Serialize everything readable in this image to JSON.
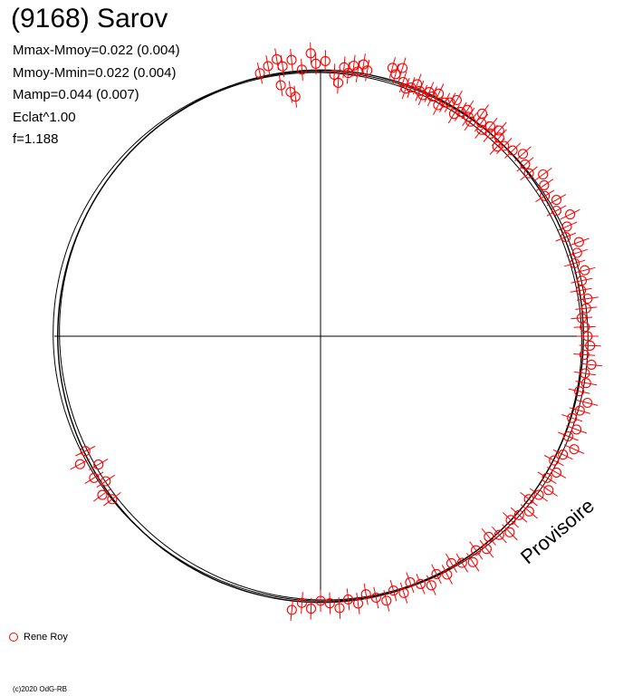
{
  "header": {
    "title": "(9168) Sarov",
    "stats": [
      "Mmax-Mmoy=0.022 (0.004)",
      "Mmoy-Mmin=0.022 (0.004)",
      "Mamp=0.044 (0.007)",
      "Eclat^1.00",
      "f=1.188"
    ]
  },
  "legend": {
    "label": "Rene Roy",
    "color": "#ff0000"
  },
  "watermark": "Provisoire",
  "copyright": "(c)2020 OdG-RB",
  "chart_data": {
    "type": "scatter",
    "title": "(9168) Sarov",
    "xlabel": "",
    "ylabel": "",
    "grid": false,
    "legend_position": "bottom-left",
    "series": [
      {
        "name": "Rene Roy",
        "color": "#ff0000",
        "note_unit": "normalized brightness radius vs rotational phase (deg)",
        "points": [
          [
            -13,
            1.02
          ],
          [
            -11,
            1.04
          ],
          [
            -9,
            1.06
          ],
          [
            -8,
            1.03
          ],
          [
            -6,
            1.05
          ],
          [
            -4,
            1.01
          ],
          [
            -2,
            1.07
          ],
          [
            -1,
            1.03
          ],
          [
            -9,
            0.96
          ],
          [
            -7,
            0.93
          ],
          [
            -6,
            0.91
          ],
          [
            1,
            1.04
          ],
          [
            3,
            0.99
          ],
          [
            4,
            0.96
          ],
          [
            5,
            1.02
          ],
          [
            6,
            1.0
          ],
          [
            7,
            1.03
          ],
          [
            8,
            1.01
          ],
          [
            9,
            1.04
          ],
          [
            10,
            1.02
          ],
          [
            15,
            1.05
          ],
          [
            16,
            1.03
          ],
          [
            17,
            1.06
          ],
          [
            18,
            1.01
          ],
          [
            19,
            0.99
          ],
          [
            20,
            1.0
          ],
          [
            21,
            1.02
          ],
          [
            22,
            1.0
          ],
          [
            23,
            0.99
          ],
          [
            24,
            1.01
          ],
          [
            25,
            1.0
          ],
          [
            26,
            1.02
          ],
          [
            27,
            0.98
          ],
          [
            28,
            1.0
          ],
          [
            29,
            1.01
          ],
          [
            30,
            1.03
          ],
          [
            31,
            0.98
          ],
          [
            32,
            1.0
          ],
          [
            33,
            1.02
          ],
          [
            34,
            1.0
          ],
          [
            35,
            0.99
          ],
          [
            36,
            1.04
          ],
          [
            37,
            1.01
          ],
          [
            38,
            0.99
          ],
          [
            39,
            1.02
          ],
          [
            40,
            1.0
          ],
          [
            41,
            1.03
          ],
          [
            42,
            1.01
          ],
          [
            43,
            0.98
          ],
          [
            44,
            1.0
          ],
          [
            46,
            1.01
          ],
          [
            48,
            1.03
          ],
          [
            50,
            1.01
          ],
          [
            52,
            1.0
          ],
          [
            54,
            1.04
          ],
          [
            56,
            1.02
          ],
          [
            58,
            1.0
          ],
          [
            60,
            1.03
          ],
          [
            62,
            1.01
          ],
          [
            64,
            1.05
          ],
          [
            66,
            1.02
          ],
          [
            68,
            1.0
          ],
          [
            70,
            1.04
          ],
          [
            72,
            1.02
          ],
          [
            74,
            1.0
          ],
          [
            76,
            1.03
          ],
          [
            78,
            1.01
          ],
          [
            80,
            1.0
          ],
          [
            82,
            1.02
          ],
          [
            84,
            1.01
          ],
          [
            86,
            0.99
          ],
          [
            88,
            1.0
          ],
          [
            90,
            1.01
          ],
          [
            92,
            1.02
          ],
          [
            94,
            1.0
          ],
          [
            96,
            1.03
          ],
          [
            98,
            1.01
          ],
          [
            100,
            1.02
          ],
          [
            102,
            1.0
          ],
          [
            104,
            1.04
          ],
          [
            106,
            1.02
          ],
          [
            108,
            1.0
          ],
          [
            110,
            1.03
          ],
          [
            112,
            1.01
          ],
          [
            114,
            1.05
          ],
          [
            116,
            1.02
          ],
          [
            118,
            1.0
          ],
          [
            120,
            1.03
          ],
          [
            122,
            1.01
          ],
          [
            124,
            1.04
          ],
          [
            126,
            1.02
          ],
          [
            128,
            1.0
          ],
          [
            130,
            1.03
          ],
          [
            132,
            1.01
          ],
          [
            134,
            1.0
          ],
          [
            136,
            1.03
          ],
          [
            138,
            1.01
          ],
          [
            140,
            0.99
          ],
          [
            142,
            1.02
          ],
          [
            144,
            1.0
          ],
          [
            146,
            1.03
          ],
          [
            148,
            1.01
          ],
          [
            150,
            0.99
          ],
          [
            152,
            1.02
          ],
          [
            154,
            1.0
          ],
          [
            156,
            1.03
          ],
          [
            158,
            1.01
          ],
          [
            160,
            0.99
          ],
          [
            162,
            1.02
          ],
          [
            164,
            1.0
          ],
          [
            166,
            1.03
          ],
          [
            168,
            1.01
          ],
          [
            170,
            0.99
          ],
          [
            172,
            1.02
          ],
          [
            174,
            1.0
          ],
          [
            176,
            1.03
          ],
          [
            178,
            1.01
          ],
          [
            180,
            1.0
          ],
          [
            182,
            1.03
          ],
          [
            184,
            1.01
          ],
          [
            186,
            1.04
          ],
          [
            232,
            1.0
          ],
          [
            234,
            1.02
          ],
          [
            236,
            0.98
          ],
          [
            238,
            1.01
          ],
          [
            240,
            0.97
          ],
          [
            242,
            1.03
          ],
          [
            244,
            0.99
          ]
        ]
      }
    ],
    "model_curves": 3
  }
}
